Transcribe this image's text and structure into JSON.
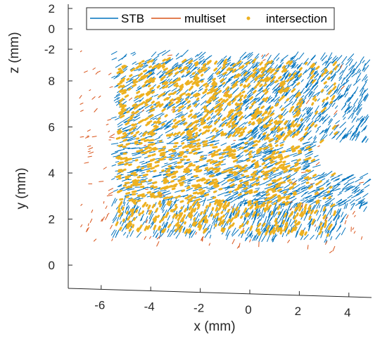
{
  "chart_data": {
    "type": "scatter",
    "projection": "3d-oblique",
    "title": "",
    "xlabel": "x (mm)",
    "ylabel": "y (mm)",
    "zlabel": "z (mm)",
    "xlim": [
      -7.2,
      5
    ],
    "ylim": [
      -0.5,
      9.5
    ],
    "zlim": [
      -2,
      2
    ],
    "xticks": [
      "-6",
      "-4",
      "-2",
      "0",
      "2",
      "4"
    ],
    "yticks": [
      "0",
      "2",
      "4",
      "6",
      "8"
    ],
    "zticks": [
      "-2",
      "0",
      "2"
    ],
    "grid": false,
    "legend_position": "top",
    "series": [
      {
        "name": "STB",
        "style": "line-segments",
        "color": "#0072BD",
        "extent": {
          "x": [
            -5.6,
            4.7
          ],
          "y": [
            1.2,
            9.2
          ]
        },
        "description_of_cloud": "dense short track segments, denser toward +x, upper band"
      },
      {
        "name": "multiset",
        "style": "line-segments",
        "color": "#D95319",
        "extent": {
          "x": [
            -6.9,
            4.5
          ],
          "y": [
            0.8,
            9.3
          ]
        },
        "description_of_cloud": "sparse short segments around the periphery"
      },
      {
        "name": "intersection",
        "style": "dots",
        "color": "#EDB120",
        "extent": {
          "x": [
            -5.4,
            3.5
          ],
          "y": [
            1.5,
            9.0
          ]
        },
        "description_of_cloud": "dense dots in the left and central regions"
      }
    ]
  }
}
